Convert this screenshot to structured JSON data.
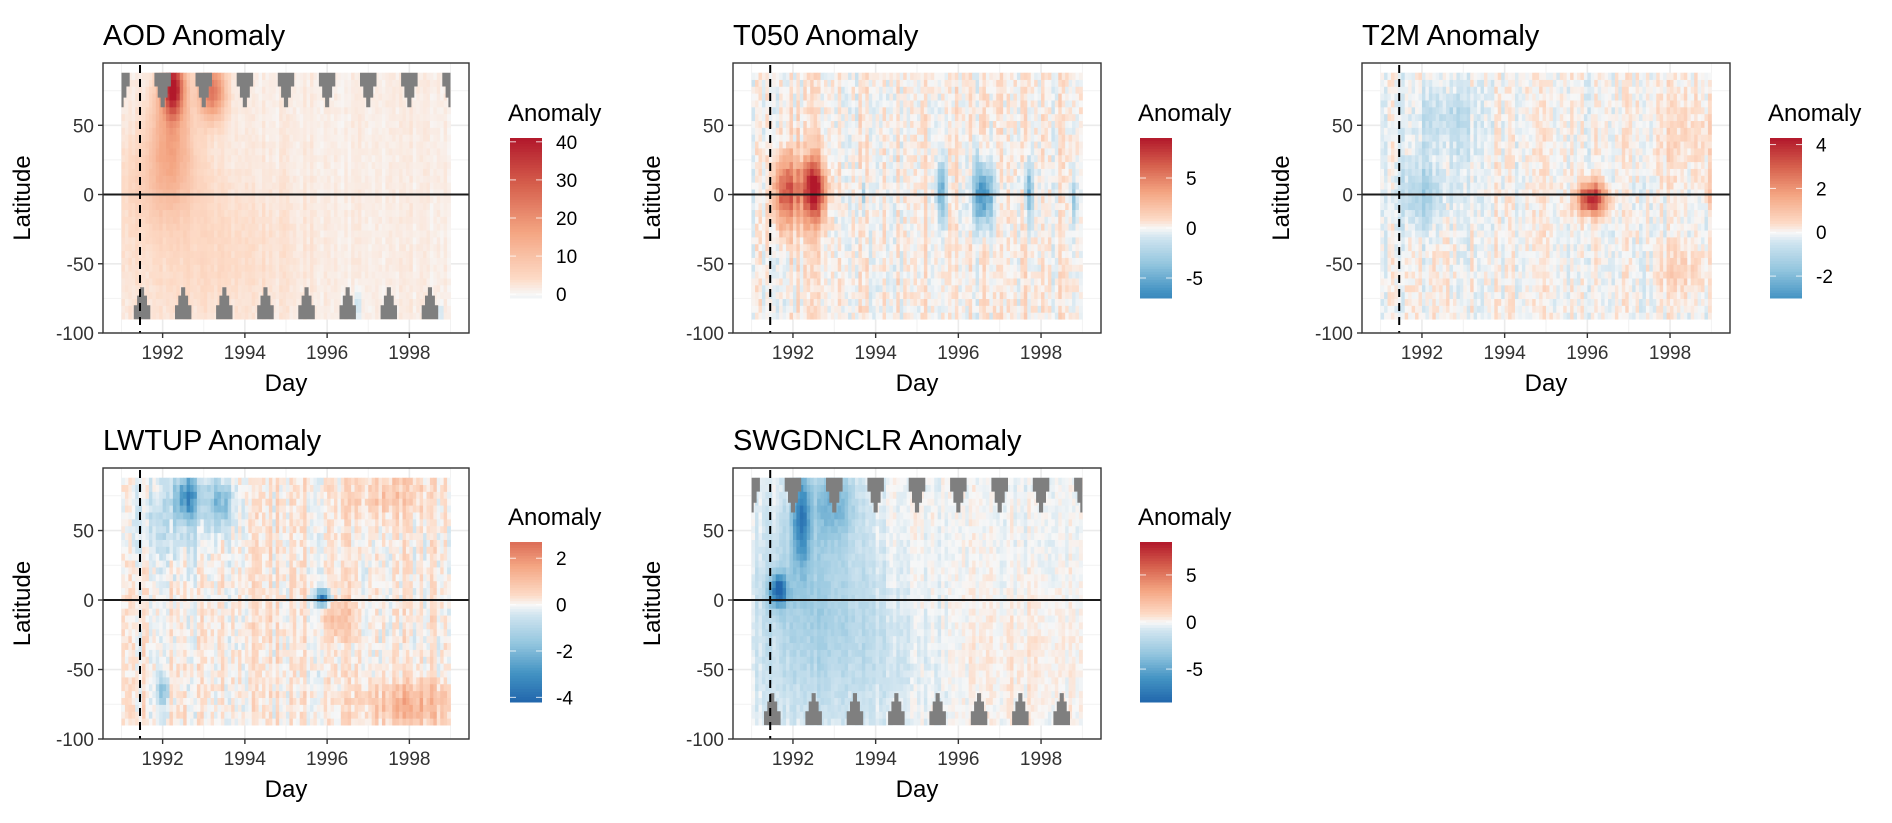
{
  "chart_data": [
    {
      "type": "heatmap",
      "title": "AOD Anomaly",
      "xlabel": "Day",
      "ylabel": "Latitude",
      "xticks": [
        1992,
        1994,
        1996,
        1998
      ],
      "yticks": [
        50,
        0,
        -50,
        -100
      ],
      "xlim": [
        1990.55,
        1999.45
      ],
      "ylim": [
        -100,
        95
      ],
      "data_x_range": [
        1991.0,
        1999.0
      ],
      "data_y_range": [
        -90,
        88
      ],
      "legend": {
        "title": "Anomaly",
        "ticks": [
          40,
          30,
          20,
          10,
          0
        ],
        "range": [
          -1,
          41
        ],
        "placement": "right"
      },
      "reference_lines": {
        "hline_y": 0,
        "vline_dashed_x": 1991.45
      },
      "noise_amplitude": 1.2,
      "noise_bias": 1.5,
      "features": [
        {
          "x": 1992.25,
          "y": 78,
          "sx": 0.18,
          "sy": 14,
          "value": 38
        },
        {
          "x": 1992.2,
          "y": 45,
          "sx": 0.35,
          "sy": 28,
          "value": 12
        },
        {
          "x": 1993.2,
          "y": 75,
          "sx": 0.22,
          "sy": 14,
          "value": 24
        },
        {
          "x": 1992.0,
          "y": 10,
          "sx": 0.6,
          "sy": 25,
          "value": 6
        },
        {
          "x": 1993.0,
          "y": -40,
          "sx": 1.5,
          "sy": 40,
          "value": 3
        },
        {
          "x": 1996.75,
          "y": -80,
          "sx": 0.05,
          "sy": 8,
          "value": -9
        },
        {
          "x": 1998.75,
          "y": -85,
          "sx": 0.05,
          "sy": 4,
          "value": -8
        }
      ],
      "polar_gaps": {
        "north": true,
        "south": true,
        "north_peak_years": [
          1991.0,
          1992.0,
          1993.0,
          1994.0,
          1995.0,
          1996.0,
          1997.0,
          1998.0,
          1999.0
        ],
        "south_peak_years": [
          1991.5,
          1992.5,
          1993.5,
          1994.5,
          1995.5,
          1996.5,
          1997.5,
          1998.5
        ]
      }
    },
    {
      "type": "heatmap",
      "title": "T050 Anomaly",
      "xlabel": "Day",
      "ylabel": "Latitude",
      "xticks": [
        1992,
        1994,
        1996,
        1998
      ],
      "yticks": [
        50,
        0,
        -50,
        -100
      ],
      "xlim": [
        1990.55,
        1999.45
      ],
      "ylim": [
        -100,
        95
      ],
      "data_x_range": [
        1991.0,
        1999.0
      ],
      "data_y_range": [
        -90,
        88
      ],
      "legend": {
        "title": "Anomaly",
        "ticks": [
          5,
          0,
          -5
        ],
        "range": [
          -7,
          9
        ],
        "placement": "right"
      },
      "reference_lines": {
        "hline_y": 0,
        "vline_dashed_x": 1991.45
      },
      "noise_amplitude": 1.3,
      "noise_bias": 0.3,
      "features": [
        {
          "x": 1991.85,
          "y": 2,
          "sx": 0.22,
          "sy": 18,
          "value": 7
        },
        {
          "x": 1992.5,
          "y": 3,
          "sx": 0.2,
          "sy": 16,
          "value": 9
        },
        {
          "x": 1993.7,
          "y": 0,
          "sx": 0.05,
          "sy": 8,
          "value": -3
        },
        {
          "x": 1995.6,
          "y": 2,
          "sx": 0.08,
          "sy": 15,
          "value": -5
        },
        {
          "x": 1996.6,
          "y": 0,
          "sx": 0.18,
          "sy": 16,
          "value": -7
        },
        {
          "x": 1997.7,
          "y": 3,
          "sx": 0.07,
          "sy": 15,
          "value": -5
        },
        {
          "x": 1998.8,
          "y": -5,
          "sx": 0.05,
          "sy": 12,
          "value": -3
        }
      ],
      "polar_gaps": {
        "north": false,
        "south": false
      }
    },
    {
      "type": "heatmap",
      "title": "T2M Anomaly",
      "xlabel": "Day",
      "ylabel": "Latitude",
      "xticks": [
        1992,
        1994,
        1996,
        1998
      ],
      "yticks": [
        50,
        0,
        -50,
        -100
      ],
      "xlim": [
        1990.55,
        1999.45
      ],
      "ylim": [
        -100,
        95
      ],
      "data_x_range": [
        1991.0,
        1999.0
      ],
      "data_y_range": [
        -90,
        88
      ],
      "legend": {
        "title": "Anomaly",
        "ticks": [
          4,
          2,
          0,
          -2
        ],
        "range": [
          -3,
          4.3
        ],
        "placement": "right"
      },
      "reference_lines": {
        "hline_y": 0,
        "vline_dashed_x": 1991.45
      },
      "noise_amplitude": 0.55,
      "noise_bias": 0.0,
      "features": [
        {
          "x": 1992.0,
          "y": 0,
          "sx": 0.4,
          "sy": 18,
          "value": -1.3
        },
        {
          "x": 1992.5,
          "y": 55,
          "sx": 0.6,
          "sy": 20,
          "value": -0.8
        },
        {
          "x": 1996.1,
          "y": -3,
          "sx": 0.25,
          "sy": 8,
          "value": 4.2
        },
        {
          "x": 1998.5,
          "y": 45,
          "sx": 0.8,
          "sy": 25,
          "value": 0.5
        },
        {
          "x": 1998.3,
          "y": -55,
          "sx": 0.5,
          "sy": 12,
          "value": 0.7
        },
        {
          "x": 1999.0,
          "y": 0,
          "sx": 0.1,
          "sy": 10,
          "value": 1.0
        }
      ],
      "polar_gaps": {
        "north": false,
        "south": false
      }
    },
    {
      "type": "heatmap",
      "title": "LWTUP Anomaly",
      "xlabel": "Day",
      "ylabel": "Latitude",
      "xticks": [
        1992,
        1994,
        1996,
        1998
      ],
      "yticks": [
        50,
        0,
        -50,
        -100
      ],
      "xlim": [
        1990.55,
        1999.45
      ],
      "ylim": [
        -100,
        95
      ],
      "data_x_range": [
        1991.0,
        1999.0
      ],
      "data_y_range": [
        -90,
        88
      ],
      "legend": {
        "title": "Anomaly",
        "ticks": [
          2,
          0,
          -2,
          -4
        ],
        "range": [
          -4.2,
          2.7
        ],
        "placement": "right"
      },
      "reference_lines": {
        "hline_y": 0,
        "vline_dashed_x": 1991.45
      },
      "noise_amplitude": 0.6,
      "noise_bias": 0.15,
      "features": [
        {
          "x": 1992.6,
          "y": 75,
          "sx": 0.25,
          "sy": 12,
          "value": -2.8
        },
        {
          "x": 1993.4,
          "y": 70,
          "sx": 0.2,
          "sy": 12,
          "value": -2.0
        },
        {
          "x": 1992.2,
          "y": 55,
          "sx": 0.8,
          "sy": 20,
          "value": -0.7
        },
        {
          "x": 1995.9,
          "y": 2,
          "sx": 0.12,
          "sy": 4,
          "value": -4
        },
        {
          "x": 1996.2,
          "y": -12,
          "sx": 0.3,
          "sy": 10,
          "value": 0.8
        },
        {
          "x": 1992.0,
          "y": -65,
          "sx": 0.1,
          "sy": 8,
          "value": -1.5
        },
        {
          "x": 1998.0,
          "y": -75,
          "sx": 0.8,
          "sy": 12,
          "value": 1.2
        },
        {
          "x": 1997.5,
          "y": 75,
          "sx": 0.6,
          "sy": 12,
          "value": 0.8
        }
      ],
      "polar_gaps": {
        "north": false,
        "south": false
      }
    },
    {
      "type": "heatmap",
      "title": "SWGDNCLR Anomaly",
      "xlabel": "Day",
      "ylabel": "Latitude",
      "xticks": [
        1992,
        1994,
        1996,
        1998
      ],
      "yticks": [
        50,
        0,
        -50,
        -100
      ],
      "xlim": [
        1990.55,
        1999.45
      ],
      "ylim": [
        -100,
        95
      ],
      "data_x_range": [
        1991.0,
        1999.0
      ],
      "data_y_range": [
        -90,
        88
      ],
      "legend": {
        "title": "Anomaly",
        "ticks": [
          5,
          0,
          -5
        ],
        "range": [
          -8.5,
          8.5
        ],
        "placement": "right"
      },
      "reference_lines": {
        "hline_y": 0,
        "vline_dashed_x": 1991.45
      },
      "noise_amplitude": 0.7,
      "noise_bias": -0.1,
      "features": [
        {
          "x": 1991.65,
          "y": 7,
          "sx": 0.15,
          "sy": 8,
          "value": -8
        },
        {
          "x": 1992.2,
          "y": 60,
          "sx": 0.15,
          "sy": 25,
          "value": -6
        },
        {
          "x": 1993.0,
          "y": 70,
          "sx": 0.35,
          "sy": 18,
          "value": -3.5
        },
        {
          "x": 1992.5,
          "y": 20,
          "sx": 0.9,
          "sy": 45,
          "value": -2
        },
        {
          "x": 1993.0,
          "y": -40,
          "sx": 1.5,
          "sy": 40,
          "value": -1.3
        },
        {
          "x": 1997.5,
          "y": -40,
          "sx": 1.2,
          "sy": 40,
          "value": 0.5
        }
      ],
      "polar_gaps": {
        "north": true,
        "south": true,
        "north_peak_years": [
          1991.0,
          1992.0,
          1993.0,
          1994.0,
          1995.0,
          1996.0,
          1997.0,
          1998.0,
          1999.0
        ],
        "south_peak_years": [
          1991.5,
          1992.5,
          1993.5,
          1994.5,
          1995.5,
          1996.5,
          1997.5,
          1998.5
        ]
      }
    }
  ]
}
